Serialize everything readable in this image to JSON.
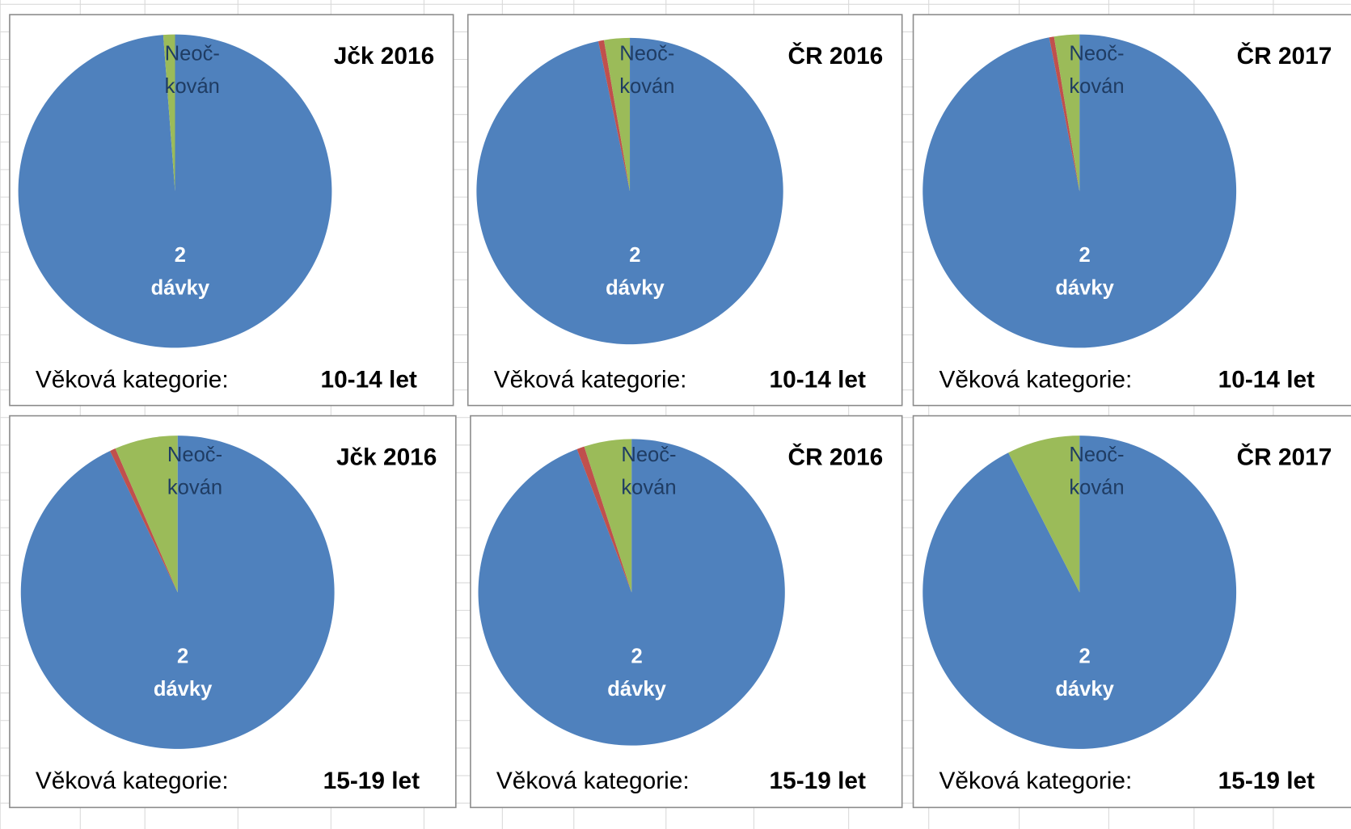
{
  "chart_data": [
    {
      "type": "pie",
      "title": "Jčk 2016",
      "caption_label": "Věková kategorie:",
      "caption_value": "10-14 let",
      "categories": [
        "2 dávky",
        null,
        "Neoč-kován"
      ],
      "values": [
        98.8,
        0,
        1.2
      ],
      "colors": [
        "#4f81bd",
        "#c0504d",
        "#9bbb59"
      ]
    },
    {
      "type": "pie",
      "title": "ČR 2016",
      "caption_label": "Věková kategorie:",
      "caption_value": "10-14 let",
      "categories": [
        "2 dávky",
        null,
        "Neoč-kován"
      ],
      "values": [
        96.7,
        0.6,
        2.7
      ],
      "colors": [
        "#4f81bd",
        "#c0504d",
        "#9bbb59"
      ]
    },
    {
      "type": "pie",
      "title": "ČR 2017",
      "caption_label": "Věková kategorie:",
      "caption_value": "10-14 let",
      "categories": [
        "2 dávky",
        null,
        "Neoč-kován"
      ],
      "values": [
        96.9,
        0.5,
        2.6
      ],
      "colors": [
        "#4f81bd",
        "#c0504d",
        "#9bbb59"
      ]
    },
    {
      "type": "pie",
      "title": "Jčk 2016",
      "caption_label": "Věková kategorie:",
      "caption_value": "15-19 let",
      "categories": [
        "2 dávky",
        null,
        "Neoč-kován"
      ],
      "values": [
        92.9,
        0.6,
        6.5
      ],
      "colors": [
        "#4f81bd",
        "#c0504d",
        "#9bbb59"
      ]
    },
    {
      "type": "pie",
      "title": "ČR 2016",
      "caption_label": "Věková kategorie:",
      "caption_value": "15-19 let",
      "categories": [
        "2 dávky",
        null,
        "Neoč-kován"
      ],
      "values": [
        94.2,
        0.8,
        5.0
      ],
      "colors": [
        "#4f81bd",
        "#c0504d",
        "#9bbb59"
      ]
    },
    {
      "type": "pie",
      "title": "ČR 2017",
      "caption_label": "Věková kategorie:",
      "caption_value": "15-19 let",
      "categories": [
        "2 dávky",
        null,
        "Neoč-kován"
      ],
      "values": [
        92.5,
        0,
        7.5
      ],
      "colors": [
        "#4f81bd",
        "#c0504d",
        "#9bbb59"
      ]
    }
  ]
}
